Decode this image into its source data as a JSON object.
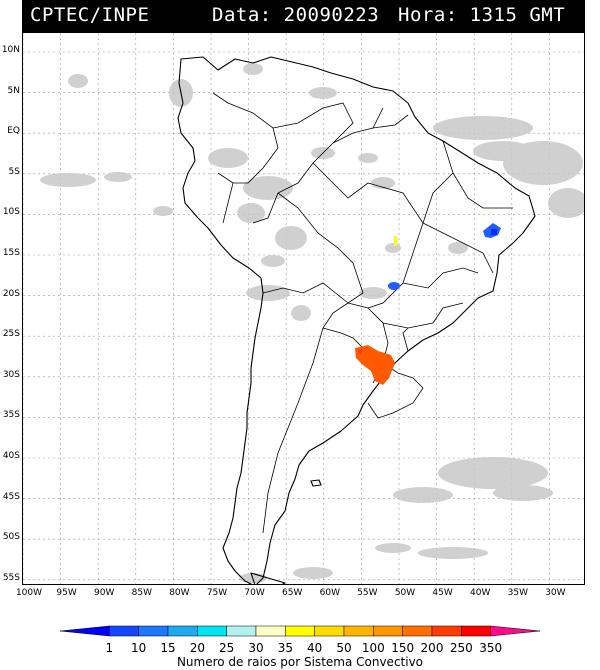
{
  "header": {
    "agency": "CPTEC/INPE",
    "date_text": "Data: 20090223",
    "time_text": "Hora: 1315 GMT"
  },
  "map": {
    "lat_labels": [
      "10N",
      "5N",
      "EQ",
      "5S",
      "10S",
      "15S",
      "20S",
      "25S",
      "30S",
      "35S",
      "40S",
      "45S",
      "50S",
      "55S"
    ],
    "lon_labels": [
      "100W",
      "95W",
      "90W",
      "85W",
      "80W",
      "75W",
      "70W",
      "65W",
      "60W",
      "55W",
      "50W",
      "45W",
      "40W",
      "35W",
      "30W"
    ],
    "cloud_color": "#c8c8c8",
    "coast_color": "#000000",
    "grid_color": "#9a9a9a"
  },
  "lightning_systems": [
    {
      "name": "system-northeast-brazil",
      "count_class": "10-15",
      "color": "#1f5fff"
    },
    {
      "name": "system-central-brazil",
      "count_class": "10-15",
      "color": "#1f5fff"
    },
    {
      "name": "system-tocantins",
      "count_class": "35-40",
      "color": "#ffff00"
    },
    {
      "name": "system-southern-brazil",
      "count_class": "200-250",
      "color": "#ff5a00"
    }
  ],
  "colorbar": {
    "labels": [
      "1",
      "10",
      "15",
      "20",
      "25",
      "30",
      "35",
      "40",
      "50",
      "100",
      "150",
      "200",
      "250",
      "350"
    ],
    "colors": [
      "#0000ff",
      "#1446ff",
      "#1e78ff",
      "#1eaaf0",
      "#00e6f0",
      "#b4f0f0",
      "#ffffc8",
      "#ffff00",
      "#ffdc00",
      "#ffb400",
      "#ff9600",
      "#ff6e00",
      "#ff3c00",
      "#ff0000",
      "#ff0a8c"
    ],
    "title": "Numero de raios por Sistema Convectivo"
  }
}
